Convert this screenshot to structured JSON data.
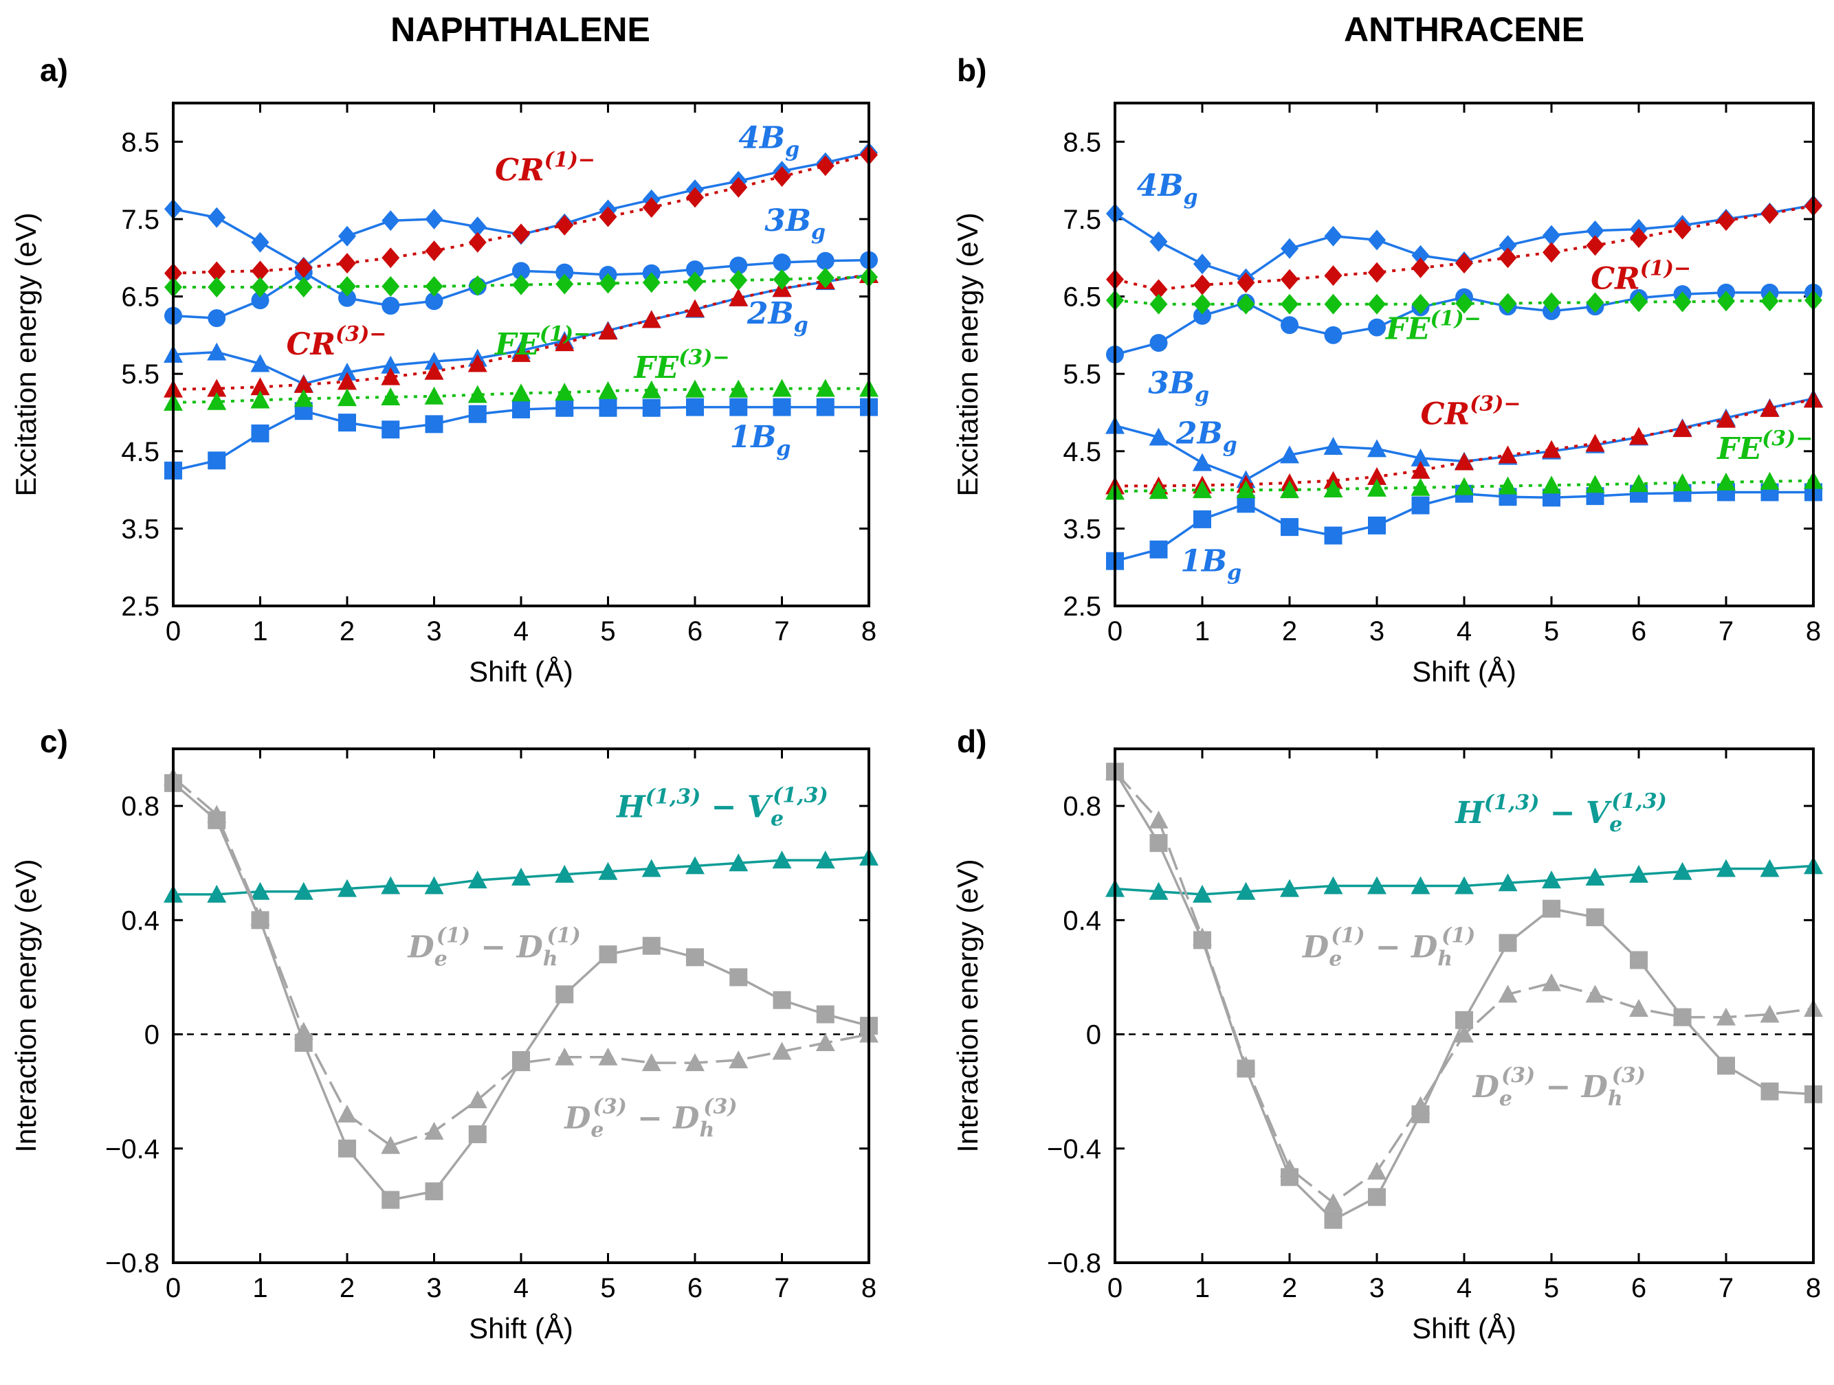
{
  "titles": {
    "left": "NAPHTHALENE",
    "right": "ANTHRACENE"
  },
  "colors": {
    "blue": "#1f77e8",
    "red": "#cc0a0a",
    "green": "#12c012",
    "teal": "#0e9c96",
    "gray": "#a5a5a5",
    "axis": "#000000"
  },
  "chart_data": [
    {
      "id": "a",
      "label": "a)",
      "type": "line",
      "xlabel": "Shift (Å)",
      "ylabel": "Excitation energy (eV)",
      "xlim": [
        0,
        8
      ],
      "ylim": [
        2.5,
        9.0
      ],
      "xticks": [
        0,
        1,
        2,
        3,
        4,
        5,
        6,
        7,
        8
      ],
      "yticks": [
        2.5,
        3.5,
        4.5,
        5.5,
        6.5,
        7.5,
        8.5
      ],
      "x": [
        0,
        0.5,
        1,
        1.5,
        2,
        2.5,
        3,
        3.5,
        4,
        4.5,
        5,
        5.5,
        6,
        6.5,
        7,
        7.5,
        8
      ],
      "series": [
        {
          "name": "1Bg",
          "color": "#1f77e8",
          "marker": "square",
          "style": "solid",
          "values": [
            4.25,
            4.38,
            4.73,
            5.02,
            4.87,
            4.78,
            4.85,
            4.98,
            5.04,
            5.06,
            5.06,
            5.06,
            5.07,
            5.07,
            5.07,
            5.07,
            5.07
          ]
        },
        {
          "name": "2Bg",
          "color": "#1f77e8",
          "marker": "triangle",
          "style": "solid",
          "values": [
            5.75,
            5.78,
            5.63,
            5.37,
            5.52,
            5.61,
            5.66,
            5.7,
            5.8,
            5.93,
            6.06,
            6.2,
            6.33,
            6.48,
            6.6,
            6.69,
            6.78
          ]
        },
        {
          "name": "3Bg",
          "color": "#1f77e8",
          "marker": "circle",
          "style": "solid",
          "values": [
            6.25,
            6.22,
            6.45,
            6.81,
            6.48,
            6.38,
            6.44,
            6.63,
            6.83,
            6.81,
            6.78,
            6.8,
            6.85,
            6.9,
            6.94,
            6.96,
            6.97
          ]
        },
        {
          "name": "4Bg",
          "color": "#1f77e8",
          "marker": "diamond",
          "style": "solid",
          "values": [
            7.63,
            7.52,
            7.2,
            6.88,
            7.28,
            7.48,
            7.5,
            7.4,
            7.3,
            7.44,
            7.62,
            7.75,
            7.88,
            7.99,
            8.12,
            8.23,
            8.36
          ]
        },
        {
          "name": "CR(1)-",
          "color": "#cc0a0a",
          "marker": "diamond",
          "style": "dotted",
          "values": [
            6.8,
            6.82,
            6.83,
            6.87,
            6.93,
            7.0,
            7.09,
            7.2,
            7.31,
            7.42,
            7.53,
            7.65,
            7.78,
            7.91,
            8.05,
            8.19,
            8.33
          ]
        },
        {
          "name": "CR(3)-",
          "color": "#cc0a0a",
          "marker": "triangle",
          "style": "dotted",
          "values": [
            5.3,
            5.31,
            5.33,
            5.36,
            5.4,
            5.46,
            5.53,
            5.63,
            5.76,
            5.9,
            6.05,
            6.2,
            6.34,
            6.48,
            6.6,
            6.7,
            6.78
          ]
        },
        {
          "name": "FE(1)-",
          "color": "#12c012",
          "marker": "diamond",
          "style": "dotted",
          "values": [
            6.62,
            6.62,
            6.62,
            6.62,
            6.63,
            6.63,
            6.63,
            6.64,
            6.65,
            6.66,
            6.67,
            6.68,
            6.69,
            6.71,
            6.72,
            6.74,
            6.75
          ]
        },
        {
          "name": "FE(3)-",
          "color": "#12c012",
          "marker": "triangle",
          "style": "dotted",
          "values": [
            5.13,
            5.14,
            5.16,
            5.18,
            5.19,
            5.2,
            5.21,
            5.23,
            5.25,
            5.26,
            5.28,
            5.29,
            5.3,
            5.3,
            5.31,
            5.31,
            5.31
          ]
        }
      ],
      "annotations": [
        {
          "base": "4B",
          "sub": "g",
          "sup": "",
          "color": "#1f77e8",
          "x": 6.5,
          "y": 8.42
        },
        {
          "base": "CR",
          "sub": "",
          "sup": "(1)−",
          "color": "#cc0a0a",
          "x": 3.7,
          "y": 8.0
        },
        {
          "base": "3B",
          "sub": "g",
          "sup": "",
          "color": "#1f77e8",
          "x": 6.8,
          "y": 7.35
        },
        {
          "base": "FE",
          "sub": "",
          "sup": "(1)−",
          "color": "#12c012",
          "x": 3.7,
          "y": 5.75
        },
        {
          "base": "CR",
          "sub": "",
          "sup": "(3)−",
          "color": "#cc0a0a",
          "x": 1.3,
          "y": 5.75
        },
        {
          "base": "2B",
          "sub": "g",
          "sup": "",
          "color": "#1f77e8",
          "x": 6.6,
          "y": 6.15
        },
        {
          "base": "FE",
          "sub": "",
          "sup": "(3)−",
          "color": "#12c012",
          "x": 5.3,
          "y": 5.45
        },
        {
          "base": "1B",
          "sub": "g",
          "sup": "",
          "color": "#1f77e8",
          "x": 6.4,
          "y": 4.55
        }
      ]
    },
    {
      "id": "b",
      "label": "b)",
      "type": "line",
      "xlabel": "Shift (Å)",
      "ylabel": "Excitation energy (eV)",
      "xlim": [
        0,
        8
      ],
      "ylim": [
        2.5,
        9.0
      ],
      "xticks": [
        0,
        1,
        2,
        3,
        4,
        5,
        6,
        7,
        8
      ],
      "yticks": [
        2.5,
        3.5,
        4.5,
        5.5,
        6.5,
        7.5,
        8.5
      ],
      "x": [
        0,
        0.5,
        1,
        1.5,
        2,
        2.5,
        3,
        3.5,
        4,
        4.5,
        5,
        5.5,
        6,
        6.5,
        7,
        7.5,
        8
      ],
      "series": [
        {
          "name": "1Bg",
          "color": "#1f77e8",
          "marker": "square",
          "style": "solid",
          "values": [
            3.08,
            3.23,
            3.62,
            3.82,
            3.52,
            3.41,
            3.54,
            3.8,
            3.95,
            3.91,
            3.9,
            3.92,
            3.95,
            3.96,
            3.97,
            3.97,
            3.97
          ]
        },
        {
          "name": "2Bg",
          "color": "#1f77e8",
          "marker": "triangle",
          "style": "solid",
          "values": [
            4.83,
            4.68,
            4.35,
            4.13,
            4.45,
            4.56,
            4.53,
            4.41,
            4.37,
            4.43,
            4.5,
            4.58,
            4.68,
            4.8,
            4.93,
            5.06,
            5.18
          ]
        },
        {
          "name": "3Bg",
          "color": "#1f77e8",
          "marker": "circle",
          "style": "solid",
          "values": [
            5.75,
            5.9,
            6.25,
            6.42,
            6.13,
            6.0,
            6.1,
            6.36,
            6.49,
            6.37,
            6.31,
            6.37,
            6.48,
            6.53,
            6.55,
            6.55,
            6.55
          ]
        },
        {
          "name": "4Bg",
          "color": "#1f77e8",
          "marker": "diamond",
          "style": "solid",
          "values": [
            7.57,
            7.21,
            6.92,
            6.73,
            7.12,
            7.28,
            7.23,
            7.03,
            6.95,
            7.16,
            7.29,
            7.35,
            7.37,
            7.42,
            7.5,
            7.58,
            7.68
          ]
        },
        {
          "name": "CR(1)-",
          "color": "#cc0a0a",
          "marker": "diamond",
          "style": "dotted",
          "values": [
            6.72,
            6.59,
            6.65,
            6.68,
            6.72,
            6.77,
            6.81,
            6.87,
            6.93,
            7.0,
            7.07,
            7.16,
            7.26,
            7.37,
            7.48,
            7.57,
            7.67
          ]
        },
        {
          "name": "CR(3)-",
          "color": "#cc0a0a",
          "marker": "triangle",
          "style": "dotted",
          "values": [
            4.05,
            4.05,
            4.06,
            4.07,
            4.09,
            4.12,
            4.17,
            4.25,
            4.36,
            4.45,
            4.52,
            4.6,
            4.69,
            4.79,
            4.91,
            5.05,
            5.17
          ]
        },
        {
          "name": "FE(1)-",
          "color": "#12c012",
          "marker": "diamond",
          "style": "dotted",
          "values": [
            6.45,
            6.4,
            6.4,
            6.4,
            6.4,
            6.4,
            6.4,
            6.4,
            6.41,
            6.41,
            6.42,
            6.42,
            6.43,
            6.43,
            6.44,
            6.44,
            6.45
          ]
        },
        {
          "name": "FE(3)-",
          "color": "#12c012",
          "marker": "triangle",
          "style": "dotted",
          "values": [
            3.98,
            3.99,
            4.0,
            4.0,
            4.0,
            4.01,
            4.02,
            4.03,
            4.04,
            4.05,
            4.06,
            4.07,
            4.08,
            4.09,
            4.1,
            4.11,
            4.12
          ]
        }
      ],
      "annotations": [
        {
          "base": "4B",
          "sub": "g",
          "sup": "",
          "color": "#1f77e8",
          "x": 0.25,
          "y": 7.8
        },
        {
          "base": "CR",
          "sub": "",
          "sup": "(1)−",
          "color": "#cc0a0a",
          "x": 5.45,
          "y": 6.6
        },
        {
          "base": "FE",
          "sub": "",
          "sup": "(1)−",
          "color": "#12c012",
          "x": 3.1,
          "y": 5.95
        },
        {
          "base": "3B",
          "sub": "g",
          "sup": "",
          "color": "#1f77e8",
          "x": 0.38,
          "y": 5.25
        },
        {
          "base": "CR",
          "sub": "",
          "sup": "(3)−",
          "color": "#cc0a0a",
          "x": 3.5,
          "y": 4.85
        },
        {
          "base": "2B",
          "sub": "g",
          "sup": "",
          "color": "#1f77e8",
          "x": 0.7,
          "y": 4.6
        },
        {
          "base": "FE",
          "sub": "",
          "sup": "(3)−",
          "color": "#12c012",
          "x": 6.9,
          "y": 4.4
        },
        {
          "base": "1B",
          "sub": "g",
          "sup": "",
          "color": "#1f77e8",
          "x": 0.75,
          "y": 2.95
        }
      ]
    },
    {
      "id": "c",
      "label": "c)",
      "type": "line",
      "xlabel": "Shift (Å)",
      "ylabel": "Interaction energy (eV)",
      "xlim": [
        0,
        8
      ],
      "ylim": [
        -0.8,
        1.0
      ],
      "xticks": [
        0,
        1,
        2,
        3,
        4,
        5,
        6,
        7,
        8
      ],
      "yticks": [
        -0.8,
        -0.4,
        0,
        0.4,
        0.8
      ],
      "ytick_labels": [
        "−0.8",
        "−0.4",
        "0",
        "0.4",
        "0.8"
      ],
      "zero_line": true,
      "x": [
        0,
        0.5,
        1,
        1.5,
        2,
        2.5,
        3,
        3.5,
        4,
        4.5,
        5,
        5.5,
        6,
        6.5,
        7,
        7.5,
        8
      ],
      "series": [
        {
          "name": "H(1,3) - Ve(1,3)",
          "color": "#0e9c96",
          "marker": "triangle",
          "style": "solid",
          "values": [
            0.49,
            0.49,
            0.5,
            0.5,
            0.51,
            0.52,
            0.52,
            0.54,
            0.55,
            0.56,
            0.57,
            0.58,
            0.59,
            0.6,
            0.61,
            0.61,
            0.62
          ]
        },
        {
          "name": "De(1) - Dh(1)",
          "color": "#a5a5a5",
          "marker": "square",
          "style": "solid",
          "values": [
            0.88,
            0.75,
            0.4,
            -0.03,
            -0.4,
            -0.58,
            -0.55,
            -0.35,
            -0.09,
            0.14,
            0.28,
            0.31,
            0.27,
            0.2,
            0.12,
            0.07,
            0.03
          ]
        },
        {
          "name": "De(3) - Dh(3)",
          "color": "#a5a5a5",
          "marker": "triangle",
          "style": "dashed",
          "values": [
            0.9,
            0.77,
            0.41,
            0.01,
            -0.28,
            -0.39,
            -0.34,
            -0.23,
            -0.1,
            -0.08,
            -0.08,
            -0.1,
            -0.1,
            -0.09,
            -0.06,
            -0.03,
            0.0
          ]
        }
      ],
      "annotations": [
        {
          "base": "H",
          "sub": "",
          "sup": "(1,3)",
          "tail": " − V",
          "tail_sub": "e",
          "tail_sup": "(1,3)",
          "color": "#0e9c96",
          "x": 5.1,
          "y": 0.76
        },
        {
          "base": "D",
          "sub": "e",
          "sup": "(1)",
          "tail": " − D",
          "tail_sub": "h",
          "tail_sup": "(1)",
          "color": "#a5a5a5",
          "x": 2.7,
          "y": 0.27
        },
        {
          "base": "D",
          "sub": "e",
          "sup": "(3)",
          "tail": " − D",
          "tail_sub": "h",
          "tail_sup": "(3)",
          "color": "#a5a5a5",
          "x": 4.5,
          "y": -0.33
        }
      ]
    },
    {
      "id": "d",
      "label": "d)",
      "type": "line",
      "xlabel": "Shift (Å)",
      "ylabel": "Interaction energy (eV)",
      "xlim": [
        0,
        8
      ],
      "ylim": [
        -0.8,
        1.0
      ],
      "xticks": [
        0,
        1,
        2,
        3,
        4,
        5,
        6,
        7,
        8
      ],
      "yticks": [
        -0.8,
        -0.4,
        0,
        0.4,
        0.8
      ],
      "ytick_labels": [
        "−0.8",
        "−0.4",
        "0",
        "0.4",
        "0.8"
      ],
      "zero_line": true,
      "x": [
        0,
        0.5,
        1,
        1.5,
        2,
        2.5,
        3,
        3.5,
        4,
        4.5,
        5,
        5.5,
        6,
        6.5,
        7,
        7.5,
        8
      ],
      "series": [
        {
          "name": "H(1,3) - Ve(1,3)",
          "color": "#0e9c96",
          "marker": "triangle",
          "style": "solid",
          "values": [
            0.51,
            0.5,
            0.49,
            0.5,
            0.51,
            0.52,
            0.52,
            0.52,
            0.52,
            0.53,
            0.54,
            0.55,
            0.56,
            0.57,
            0.58,
            0.58,
            0.59
          ]
        },
        {
          "name": "De(1) - Dh(1)",
          "color": "#a5a5a5",
          "marker": "square",
          "style": "solid",
          "values": [
            0.92,
            0.67,
            0.33,
            -0.12,
            -0.5,
            -0.65,
            -0.57,
            -0.28,
            0.05,
            0.32,
            0.44,
            0.41,
            0.26,
            0.06,
            -0.11,
            -0.2,
            -0.21
          ]
        },
        {
          "name": "De(3) - Dh(3)",
          "color": "#a5a5a5",
          "marker": "triangle",
          "style": "dashed",
          "values": [
            0.92,
            0.75,
            0.34,
            -0.11,
            -0.47,
            -0.59,
            -0.48,
            -0.25,
            0.0,
            0.14,
            0.18,
            0.14,
            0.09,
            0.06,
            0.06,
            0.07,
            0.09
          ]
        }
      ],
      "annotations": [
        {
          "base": "H",
          "sub": "",
          "sup": "(1,3)",
          "tail": " − V",
          "tail_sub": "e",
          "tail_sup": "(1,3)",
          "color": "#0e9c96",
          "x": 3.9,
          "y": 0.74
        },
        {
          "base": "D",
          "sub": "e",
          "sup": "(1)",
          "tail": " − D",
          "tail_sub": "h",
          "tail_sup": "(1)",
          "color": "#a5a5a5",
          "x": 2.15,
          "y": 0.27
        },
        {
          "base": "D",
          "sub": "e",
          "sup": "(3)",
          "tail": " − D",
          "tail_sub": "h",
          "tail_sup": "(3)",
          "color": "#a5a5a5",
          "x": 4.1,
          "y": -0.22
        }
      ]
    }
  ]
}
